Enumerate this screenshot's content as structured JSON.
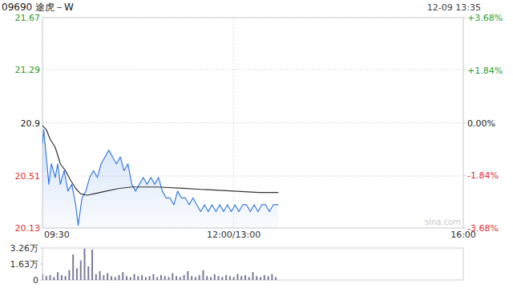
{
  "chart_data": [
    {
      "type": "line",
      "title": "09690 途虎－W",
      "subtitle": "12-09 13:35",
      "annotations": [
        "sina.com"
      ],
      "xlim": [
        0,
        330
      ],
      "xticks": [
        {
          "value": 0,
          "label": "09:30"
        },
        {
          "value": 150,
          "label": "12:00/13:00"
        },
        {
          "value": 330,
          "label": "16:00"
        }
      ],
      "ylim": [
        20.13,
        21.67
      ],
      "yticks": [
        20.13,
        20.51,
        20.9,
        21.29,
        21.67
      ],
      "y2lim": [
        -3.68,
        3.68
      ],
      "y2ticks": [
        {
          "value": -3.68,
          "label": "-3.68%"
        },
        {
          "value": -1.84,
          "label": "-1.84%"
        },
        {
          "value": 0,
          "label": "0.00%"
        },
        {
          "value": 1.84,
          "label": "+1.84%"
        },
        {
          "value": 3.68,
          "label": "+3.68%"
        }
      ],
      "grid": true,
      "series": [
        {
          "type": "area",
          "color": "#3a7be0",
          "line_style": "solid",
          "x": [
            0,
            1,
            3,
            5,
            7,
            10,
            12,
            14,
            17,
            20,
            23,
            26,
            28,
            31,
            34,
            37,
            40,
            43,
            46,
            49,
            52,
            55,
            58,
            61,
            64,
            67,
            70,
            73,
            76,
            79,
            82,
            85,
            88,
            91,
            94,
            97,
            100,
            103,
            106,
            109,
            112,
            115,
            118,
            121,
            124,
            127,
            130,
            133,
            136,
            139,
            142,
            145,
            148,
            151,
            154,
            157,
            160,
            163,
            166,
            169,
            172,
            175,
            178,
            181,
            185
          ],
          "values": [
            20.75,
            20.85,
            20.65,
            20.45,
            20.6,
            20.5,
            20.6,
            20.45,
            20.55,
            20.4,
            20.45,
            20.3,
            20.15,
            20.35,
            20.4,
            20.5,
            20.55,
            20.5,
            20.6,
            20.65,
            20.7,
            20.65,
            20.6,
            20.65,
            20.55,
            20.6,
            20.45,
            20.4,
            20.45,
            20.5,
            20.45,
            20.5,
            20.45,
            20.5,
            20.4,
            20.35,
            20.35,
            20.3,
            20.4,
            20.35,
            20.35,
            20.3,
            20.35,
            20.3,
            20.25,
            20.3,
            20.25,
            20.3,
            20.25,
            20.3,
            20.25,
            20.3,
            20.25,
            20.3,
            20.25,
            20.3,
            20.3,
            20.25,
            20.3,
            20.25,
            20.3,
            20.3,
            20.25,
            20.3,
            20.3
          ]
        },
        {
          "type": "line",
          "color": "#333333",
          "line_style": "solid",
          "x": [
            0,
            3,
            6,
            10,
            14,
            18,
            22,
            26,
            30,
            35,
            40,
            50,
            60,
            70,
            90,
            110,
            130,
            150,
            170,
            185
          ],
          "values": [
            20.88,
            20.85,
            20.78,
            20.72,
            20.6,
            20.55,
            20.48,
            20.42,
            20.38,
            20.37,
            20.38,
            20.4,
            20.42,
            20.43,
            20.43,
            20.42,
            20.41,
            20.4,
            20.39,
            20.39
          ]
        }
      ]
    },
    {
      "type": "bar",
      "color": "#7a7a9a",
      "tick_labels": "y",
      "xlim": [
        0,
        330
      ],
      "ylim": [
        0,
        3.26
      ],
      "yticks": [
        0,
        {
          "value": 1.63,
          "label": "1.63万"
        },
        {
          "value": 3.26,
          "label": "3.26万"
        }
      ],
      "x": [
        0,
        3,
        6,
        9,
        12,
        15,
        18,
        21,
        24,
        27,
        30,
        33,
        36,
        39,
        42,
        45,
        48,
        51,
        54,
        57,
        60,
        63,
        66,
        69,
        72,
        75,
        78,
        81,
        84,
        87,
        90,
        93,
        96,
        99,
        102,
        105,
        108,
        111,
        114,
        117,
        120,
        123,
        126,
        129,
        132,
        135,
        138,
        141,
        144,
        147,
        150,
        153,
        156,
        159,
        162,
        165,
        168,
        171,
        174,
        177,
        180,
        183
      ],
      "values": [
        0.6,
        0.4,
        0.5,
        0.3,
        0.8,
        0.5,
        0.4,
        1.0,
        2.6,
        1.2,
        2.0,
        3.2,
        1.4,
        3.1,
        0.6,
        0.9,
        0.5,
        0.7,
        0.4,
        0.3,
        0.5,
        0.8,
        0.4,
        0.3,
        0.6,
        0.4,
        0.5,
        0.3,
        0.4,
        0.6,
        0.3,
        0.5,
        0.4,
        0.3,
        0.7,
        0.4,
        0.3,
        0.5,
        0.9,
        0.4,
        0.3,
        0.5,
        1.0,
        0.4,
        0.3,
        0.6,
        0.4,
        0.3,
        0.5,
        0.4,
        0.3,
        0.6,
        0.4,
        0.5,
        0.3,
        0.8,
        0.4,
        0.3,
        0.5,
        0.4,
        0.6,
        0.3
      ]
    }
  ]
}
